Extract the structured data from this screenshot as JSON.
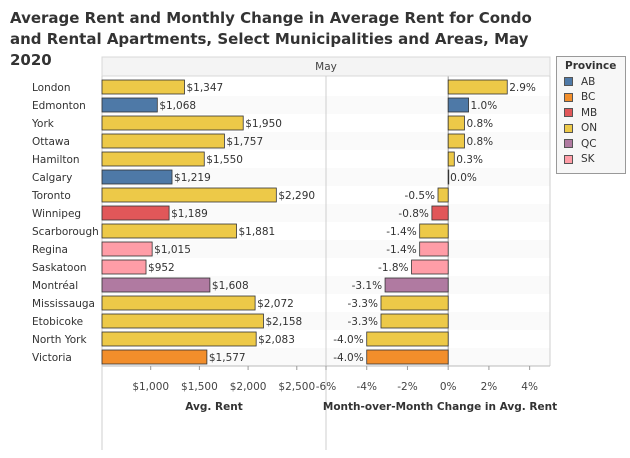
{
  "title": "Average Rent and Monthly Change in Average Rent for Condo and Rental Apartments, Select Municipalities and Areas, May 2020",
  "chart_data": {
    "type": "bar",
    "orientation": "horizontal",
    "header": "May",
    "categories": [
      "London",
      "Edmonton",
      "York",
      "Ottawa",
      "Hamilton",
      "Calgary",
      "Toronto",
      "Winnipeg",
      "Scarborough",
      "Regina",
      "Saskatoon",
      "Montréal",
      "Mississauga",
      "Etobicoke",
      "North York",
      "Victoria"
    ],
    "province": [
      "ON",
      "AB",
      "ON",
      "ON",
      "ON",
      "AB",
      "ON",
      "MB",
      "ON",
      "SK",
      "SK",
      "QC",
      "ON",
      "ON",
      "ON",
      "BC"
    ],
    "panels": [
      {
        "name": "avg_rent",
        "xlabel": "Avg. Rent",
        "xlim": [
          500,
          2800
        ],
        "ticks": [
          1000,
          1500,
          2000,
          2500
        ],
        "tick_labels": [
          "$1,000",
          "$1,500",
          "$2,000",
          "$2,500"
        ],
        "values": [
          1347,
          1068,
          1950,
          1757,
          1550,
          1219,
          2290,
          1189,
          1881,
          1015,
          952,
          1608,
          2072,
          2158,
          2083,
          1577
        ],
        "labels": [
          "$1,347",
          "$1,068",
          "$1,950",
          "$1,757",
          "$1,550",
          "$1,219",
          "$2,290",
          "$1,189",
          "$1,881",
          "$1,015",
          "$952",
          "$1,608",
          "$2,072",
          "$2,158",
          "$2,083",
          "$1,577"
        ]
      },
      {
        "name": "mom_change",
        "xlabel": "Month-over-Month Change in Avg. Rent",
        "xlim": [
          -6,
          5
        ],
        "ticks": [
          -6,
          -4,
          -2,
          0,
          2,
          4
        ],
        "tick_labels": [
          "-6%",
          "-4%",
          "-2%",
          "0%",
          "2%",
          "4%"
        ],
        "values": [
          2.9,
          1.0,
          0.8,
          0.8,
          0.3,
          0.0,
          -0.5,
          -0.8,
          -1.4,
          -1.4,
          -1.8,
          -3.1,
          -3.3,
          -3.3,
          -4.0,
          -4.0
        ],
        "labels": [
          "2.9%",
          "1.0%",
          "0.8%",
          "0.8%",
          "0.3%",
          "0.0%",
          "-0.5%",
          "-0.8%",
          "-1.4%",
          "-1.4%",
          "-1.8%",
          "-3.1%",
          "-3.3%",
          "-3.3%",
          "-4.0%",
          "-4.0%"
        ]
      }
    ],
    "legend": {
      "title": "Province",
      "position": "right",
      "items": [
        {
          "name": "AB",
          "color": "#4e79a7"
        },
        {
          "name": "BC",
          "color": "#f28e2b"
        },
        {
          "name": "MB",
          "color": "#e15759"
        },
        {
          "name": "ON",
          "color": "#edc948"
        },
        {
          "name": "QC",
          "color": "#b07aa1"
        },
        {
          "name": "SK",
          "color": "#ff9da7"
        }
      ]
    }
  }
}
